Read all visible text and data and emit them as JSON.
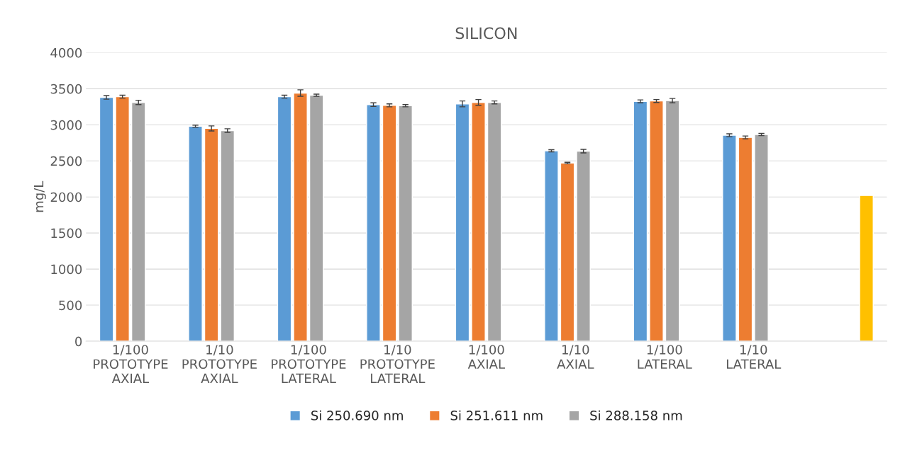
{
  "chart_data": {
    "type": "bar",
    "title": "SILICON",
    "ylabel": "mg/L",
    "categories": [
      "1/100\nPROTOTYPE\nAXIAL",
      "1/10\nPROTOTYPE\nAXIAL",
      "1/100\nPROTOTYPE\nLATERAL",
      "1/10\nPROTOTYPE\nLATERAL",
      "1/100\nAXIAL",
      "1/10\nAXIAL",
      "1/100\nLATERAL",
      "1/10\nLATERAL",
      null
    ],
    "series": [
      {
        "name": "Si 250.690 nm",
        "color": "#5b9bd5",
        "values": [
          3380,
          2980,
          3390,
          3280,
          3290,
          2640,
          3325,
          2855,
          null
        ],
        "errors": [
          25,
          15,
          20,
          25,
          40,
          15,
          20,
          20,
          null
        ]
      },
      {
        "name": "Si 251.611 nm",
        "color": "#ed7d31",
        "values": [
          3390,
          2950,
          3440,
          3270,
          3310,
          2470,
          3330,
          2825,
          null
        ],
        "errors": [
          20,
          35,
          45,
          20,
          40,
          10,
          20,
          20,
          null
        ]
      },
      {
        "name": "Si 288.158 nm",
        "color": "#a5a5a5",
        "values": [
          3310,
          2920,
          3410,
          3265,
          3310,
          2635,
          3335,
          2865,
          null
        ],
        "errors": [
          30,
          25,
          15,
          15,
          20,
          25,
          30,
          15,
          null
        ]
      },
      {
        "color": "#ffc000",
        "values": [
          null,
          null,
          null,
          null,
          null,
          null,
          null,
          null,
          2020
        ]
      }
    ],
    "ylim": [
      0,
      4000
    ],
    "yticks": [
      0,
      500,
      1000,
      1500,
      2000,
      2500,
      3000,
      3500,
      4000
    ],
    "grid": "y",
    "legend": "bottom"
  }
}
